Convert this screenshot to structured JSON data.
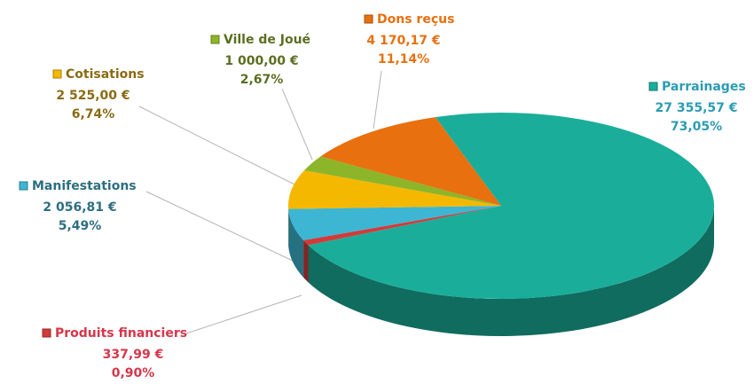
{
  "chart_data": {
    "type": "pie",
    "categories": [
      "Parrainages",
      "Produits financiers",
      "Manifestations",
      "Cotisations",
      "Ville de Joué",
      "Dons reçus"
    ],
    "values": [
      27355.57,
      337.99,
      2056.81,
      2525.0,
      1000.0,
      4170.17
    ],
    "value_labels": [
      "27 355,57 €",
      "337,99 €",
      "2 056,81 €",
      "2 525,00 €",
      "1 000,00 €",
      "4 170,17 €"
    ],
    "percentages": [
      73.05,
      0.9,
      5.49,
      6.74,
      2.67,
      11.14
    ],
    "percentage_labels": [
      "73,05%",
      "0,90%",
      "5,49%",
      "6,74%",
      "2,67%",
      "11,14%"
    ],
    "colors": [
      "#1aae9a",
      "#d23b3b",
      "#3cb6d2",
      "#f5b800",
      "#8db52a",
      "#e8700f"
    ],
    "label_colors": [
      "#2b9cb3",
      "#d6364a",
      "#2d6e80",
      "#8a6a12",
      "#5a6e20",
      "#e8700f"
    ]
  }
}
